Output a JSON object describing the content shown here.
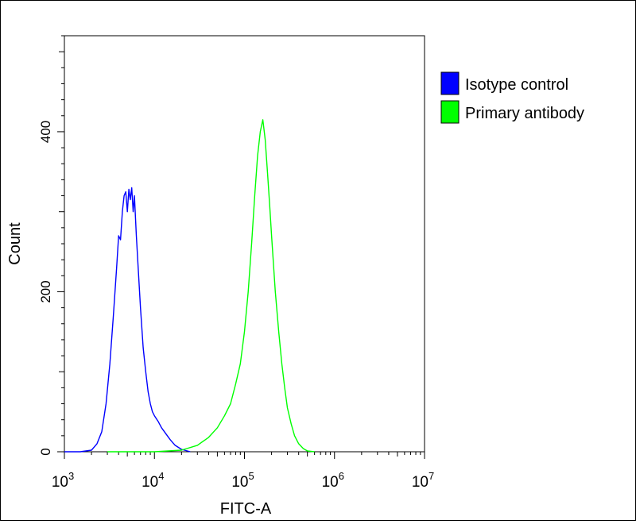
{
  "chart_data": {
    "type": "line",
    "title": "",
    "xlabel": "FITC-A",
    "ylabel": "Count",
    "xscale": "log",
    "xlim": [
      1000,
      10000000
    ],
    "ylim": [
      0,
      520
    ],
    "x_tick_labels": [
      {
        "base": "10",
        "exp": "3",
        "value": 1000
      },
      {
        "base": "10",
        "exp": "4",
        "value": 10000
      },
      {
        "base": "10",
        "exp": "5",
        "value": 100000
      },
      {
        "base": "10",
        "exp": "6",
        "value": 1000000
      },
      {
        "base": "10",
        "exp": "7",
        "value": 10000000
      }
    ],
    "y_ticks": [
      0,
      200,
      400
    ],
    "y_tick_labels": [
      "0",
      "200",
      "400"
    ],
    "grid": false,
    "legend_position": "right",
    "series": [
      {
        "name": "Isotype control",
        "color": "#0000ff",
        "x": [
          1000,
          1500,
          2000,
          2300,
          2600,
          2900,
          3200,
          3500,
          3800,
          4000,
          4200,
          4400,
          4600,
          4800,
          5000,
          5200,
          5400,
          5600,
          5800,
          6000,
          6300,
          6600,
          7000,
          7500,
          8000,
          8500,
          9000,
          9500,
          10000,
          11000,
          12000,
          13500,
          15000,
          17000,
          20000,
          25000
        ],
        "y": [
          0,
          0,
          2,
          10,
          25,
          60,
          110,
          170,
          230,
          270,
          265,
          300,
          320,
          325,
          300,
          328,
          315,
          330,
          300,
          320,
          270,
          230,
          180,
          130,
          100,
          75,
          60,
          50,
          45,
          38,
          30,
          22,
          15,
          8,
          3,
          0
        ]
      },
      {
        "name": "Primary antibody",
        "color": "#00ff00",
        "x": [
          3000,
          10000,
          20000,
          30000,
          40000,
          50000,
          60000,
          70000,
          80000,
          90000,
          100000,
          110000,
          120000,
          130000,
          140000,
          150000,
          160000,
          170000,
          180000,
          190000,
          200000,
          220000,
          240000,
          260000,
          280000,
          300000,
          330000,
          360000,
          400000,
          450000,
          500000,
          600000
        ],
        "y": [
          0,
          0,
          2,
          8,
          18,
          30,
          45,
          60,
          85,
          110,
          150,
          200,
          260,
          320,
          370,
          400,
          415,
          390,
          350,
          310,
          270,
          200,
          150,
          110,
          80,
          55,
          35,
          20,
          10,
          4,
          1,
          0
        ]
      }
    ]
  }
}
